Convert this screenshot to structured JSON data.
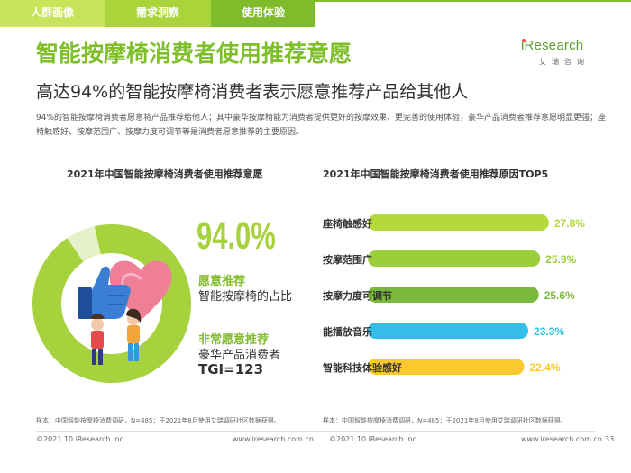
{
  "tabs": [
    {
      "label": "人群画像"
    },
    {
      "label": "需求洞察"
    },
    {
      "label": "使用体验"
    }
  ],
  "logo": {
    "word": "iResearch",
    "sub": "艾瑞咨询"
  },
  "title": "智能按摩椅消费者使用推荐意愿",
  "subtitle": "高达94%的智能按摩椅消费者表示愿意推荐产品给其他人",
  "description": "94%的智能按摩椅消费者愿意将产品推荐给他人；其中豪华按摩椅能为消费者提供更好的按摩效果、更完善的使用体验，豪华产品消费者推荐意愿明显更强；座椅触感好、按摩范围广、按摩力度可调节等是消费者愿意推荐的主要原因。",
  "left_panel": {
    "title": "2021年中国智能按摩椅消费者使用推荐意愿",
    "big_value": "94.0%",
    "label_green": "愿意推荐",
    "label_line1": "智能按摩椅的占比",
    "label_green2": "非常愿意推荐",
    "label_line2": "豪华产品消费者",
    "tgi": "TGI=123",
    "note": "样本：中国智能按摩椅消费调研，N=485；于2021年8月使用艾瑞调研社区数据获得。"
  },
  "right_panel": {
    "title": "2021年中国智能按摩椅消费者使用推荐原因TOP5",
    "note": "样本：中国智能按摩椅消费调研，N=485；于2021年8月使用艾瑞调研社区数据获得。"
  },
  "chart_data": [
    {
      "type": "pie",
      "title": "2021年中国智能按摩椅消费者使用推荐意愿",
      "slices": [
        {
          "label": "愿意推荐",
          "value": 94.0,
          "color": "#a6d23e"
        },
        {
          "label": "",
          "value": 6.0,
          "color": "#e7f1c9"
        }
      ]
    },
    {
      "type": "bar",
      "orientation": "horizontal",
      "title": "2021年中国智能按摩椅消费者使用推荐原因TOP5",
      "categories": [
        "座椅触感好",
        "按摩范围广",
        "按摩力度可调节",
        "能播放音乐",
        "智能科技体验感好"
      ],
      "values": [
        27.8,
        25.9,
        25.6,
        23.3,
        22.4
      ],
      "labels": [
        "27.8%",
        "25.9%",
        "25.6%",
        "23.3%",
        "22.4%"
      ],
      "colors": [
        "#b3d93a",
        "#9ccd3a",
        "#79b93c",
        "#34bde6",
        "#fbc92c"
      ],
      "xlim": [
        0,
        30
      ]
    }
  ],
  "footer": {
    "copyright": "©2021.10 iResearch Inc.",
    "site": "www.iresearch.com.cn",
    "page": "33"
  },
  "colors": {
    "accent": "#7fbf2a",
    "tab_dark": "#7fbb2a"
  }
}
